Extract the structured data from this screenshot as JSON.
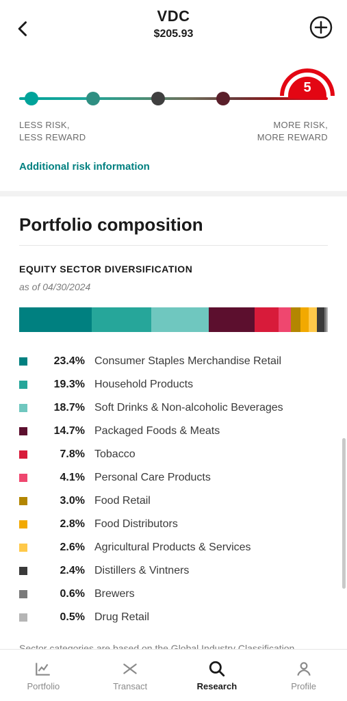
{
  "header": {
    "ticker": "VDC",
    "price": "$205.93"
  },
  "risk": {
    "level": "5",
    "left_line1": "LESS RISK,",
    "left_line2": "LESS REWARD",
    "right_line1": "MORE RISK,",
    "right_line2": "MORE REWARD",
    "link": "Additional risk information",
    "track_gradient": "linear-gradient(90deg,#00a39a 0%,#1fa69a 22%,#4a8f77 40%,#6f6f5a 55%,#6a3a3a 70%,#8a1a1a 82%,#c80f1e 92%,#e30613 100%)",
    "dots": [
      {
        "left_pct": 4,
        "color": "#00a39a"
      },
      {
        "left_pct": 24,
        "color": "#2f8f82"
      },
      {
        "left_pct": 45,
        "color": "#3f3f3f"
      },
      {
        "left_pct": 66,
        "color": "#5a1f2a"
      }
    ]
  },
  "composition": {
    "title": "Portfolio composition",
    "subhead": "EQUITY SECTOR DIVERSIFICATION",
    "as_of": "as of 04/30/2024",
    "sectors": [
      {
        "pct": "23.4%",
        "pct_num": 23.4,
        "label": "Consumer Staples Merchandise Retail",
        "color": "#008080"
      },
      {
        "pct": "19.3%",
        "pct_num": 19.3,
        "label": "Household Products",
        "color": "#26a69a"
      },
      {
        "pct": "18.7%",
        "pct_num": 18.7,
        "label": "Soft Drinks & Non-alcoholic Beverages",
        "color": "#6fc7bf"
      },
      {
        "pct": "14.7%",
        "pct_num": 14.7,
        "label": "Packaged Foods & Meats",
        "color": "#5c0f2e"
      },
      {
        "pct": "7.8%",
        "pct_num": 7.8,
        "label": "Tobacco",
        "color": "#d81b3a"
      },
      {
        "pct": "4.1%",
        "pct_num": 4.1,
        "label": "Personal Care Products",
        "color": "#ef476f"
      },
      {
        "pct": "3.0%",
        "pct_num": 3.0,
        "label": "Food Retail",
        "color": "#b38600"
      },
      {
        "pct": "2.8%",
        "pct_num": 2.8,
        "label": "Food Distributors",
        "color": "#f2a900"
      },
      {
        "pct": "2.6%",
        "pct_num": 2.6,
        "label": "Agricultural Products & Services",
        "color": "#ffc94a"
      },
      {
        "pct": "2.4%",
        "pct_num": 2.4,
        "label": "Distillers & Vintners",
        "color": "#3a3a3a"
      },
      {
        "pct": "0.6%",
        "pct_num": 0.6,
        "label": "Brewers",
        "color": "#7a7a7a"
      },
      {
        "pct": "0.5%",
        "pct_num": 0.5,
        "label": "Drug Retail",
        "color": "#b5b5b5"
      }
    ],
    "footnote": "Sector categories are based on the Global Industry Classification Standard system."
  },
  "tabs": {
    "portfolio": "Portfolio",
    "transact": "Transact",
    "research": "Research",
    "profile": "Profile",
    "active": "research"
  }
}
